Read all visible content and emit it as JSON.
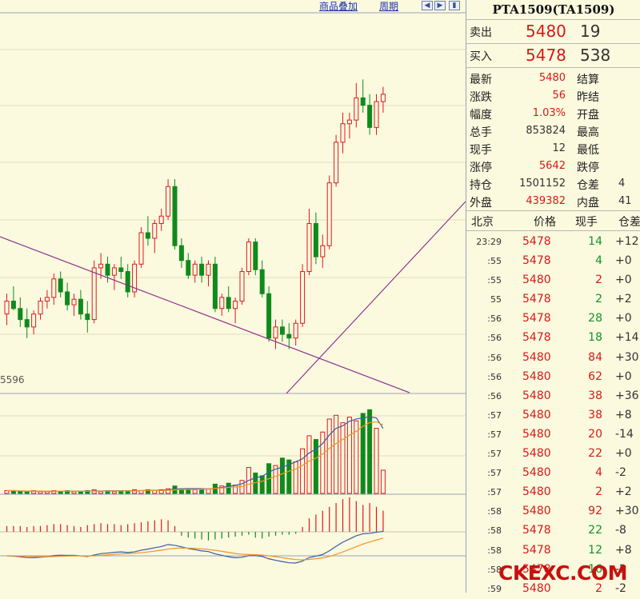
{
  "toolbar": {
    "overlay_label": "商品叠加",
    "period_label": "周期",
    "nav_icons": [
      "scroll-left-icon",
      "scroll-right-icon",
      "scroll-end-icon"
    ]
  },
  "chart_extra": {
    "price_tag": "5596"
  },
  "quote": {
    "title": "PTA1509(TA1509)",
    "ask_label": "卖出",
    "ask_price": "5480",
    "ask_vol": "19",
    "bid_label": "买入",
    "bid_price": "5478",
    "bid_vol": "538",
    "stats": [
      {
        "l1": "最新",
        "v1": "5480",
        "l2": "结算",
        "v2": "",
        "c": "red"
      },
      {
        "l1": "涨跌",
        "v1": "56",
        "l2": "昨结",
        "v2": "",
        "c": "red"
      },
      {
        "l1": "幅度",
        "v1": "1.03%",
        "l2": "开盘",
        "v2": "",
        "c": "red"
      },
      {
        "l1": "总手",
        "v1": "853824",
        "l2": "最高",
        "v2": "",
        "c": "dark"
      },
      {
        "l1": "现手",
        "v1": "12",
        "l2": "最低",
        "v2": "",
        "c": "dark"
      },
      {
        "l1": "涨停",
        "v1": "5642",
        "l2": "跌停",
        "v2": "",
        "c": "red"
      },
      {
        "l1": "持仓",
        "v1": "1501152",
        "l2": "仓差",
        "v2": "4",
        "c": "dark"
      },
      {
        "l1": "外盘",
        "v1": "439382",
        "l2": "内盘",
        "v2": "41",
        "c": "red"
      }
    ]
  },
  "trades": {
    "headers": {
      "time": "北京",
      "price": "价格",
      "vol": "现手",
      "chg": "仓差"
    },
    "rows": [
      {
        "t": "23:29",
        "p": "5478",
        "v": "14",
        "vc": "green",
        "c": "+12"
      },
      {
        "t": ":55",
        "p": "5478",
        "v": "4",
        "vc": "green",
        "c": "+0"
      },
      {
        "t": ":55",
        "p": "5480",
        "v": "2",
        "vc": "red",
        "c": "+0"
      },
      {
        "t": "55",
        "p": "5478",
        "v": "2",
        "vc": "green",
        "c": "+2"
      },
      {
        "t": ":56",
        "p": "5478",
        "v": "28",
        "vc": "green",
        "c": "+0"
      },
      {
        "t": ":56",
        "p": "5478",
        "v": "18",
        "vc": "green",
        "c": "+14"
      },
      {
        "t": ":56",
        "p": "5480",
        "v": "84",
        "vc": "red",
        "c": "+30"
      },
      {
        "t": ":56",
        "p": "5480",
        "v": "62",
        "vc": "red",
        "c": "+0"
      },
      {
        "t": ":56",
        "p": "5480",
        "v": "38",
        "vc": "red",
        "c": "+36"
      },
      {
        "t": ":57",
        "p": "5480",
        "v": "38",
        "vc": "red",
        "c": "+8"
      },
      {
        "t": ":57",
        "p": "5480",
        "v": "20",
        "vc": "red",
        "c": "-14"
      },
      {
        "t": ":57",
        "p": "5480",
        "v": "22",
        "vc": "red",
        "c": "+0"
      },
      {
        "t": ":57",
        "p": "5480",
        "v": "4",
        "vc": "red",
        "c": "-2"
      },
      {
        "t": ":57",
        "p": "5480",
        "v": "2",
        "vc": "red",
        "c": "+2"
      },
      {
        "t": ":58",
        "p": "5480",
        "v": "92",
        "vc": "red",
        "c": "+30"
      },
      {
        "t": ":58",
        "p": "5478",
        "v": "22",
        "vc": "green",
        "c": "-8"
      },
      {
        "t": ":58",
        "p": "5478",
        "v": "12",
        "vc": "green",
        "c": "+8"
      },
      {
        "t": ":58",
        "p": "5478",
        "v": "16",
        "vc": "green",
        "c": "-2"
      },
      {
        "t": ":59",
        "p": "5480",
        "v": "2",
        "vc": "red",
        "c": "-2"
      }
    ]
  },
  "watermark": "CKEXC.COM",
  "colors": {
    "bg": "#fbf9de",
    "up": "#e0191e",
    "down": "#0f8a1d",
    "trend": "#8b2a8b",
    "ma1": "#3a5aa8",
    "ma2": "#f0962a"
  },
  "chart_data": {
    "type": "candlestick",
    "visible_price_label": "5596",
    "candles": [
      [
        5603,
        5614,
        5597,
        5610
      ],
      [
        5610,
        5618,
        5605,
        5606
      ],
      [
        5606,
        5612,
        5596,
        5600
      ],
      [
        5600,
        5606,
        5590,
        5596
      ],
      [
        5596,
        5605,
        5592,
        5603
      ],
      [
        5603,
        5612,
        5600,
        5610
      ],
      [
        5610,
        5616,
        5606,
        5612
      ],
      [
        5612,
        5625,
        5608,
        5622
      ],
      [
        5622,
        5626,
        5612,
        5615
      ],
      [
        5615,
        5620,
        5605,
        5608
      ],
      [
        5608,
        5614,
        5602,
        5611
      ],
      [
        5611,
        5616,
        5600,
        5603
      ],
      [
        5603,
        5610,
        5593,
        5600
      ],
      [
        5600,
        5632,
        5598,
        5628
      ],
      [
        5628,
        5636,
        5622,
        5630
      ],
      [
        5630,
        5634,
        5620,
        5624
      ],
      [
        5624,
        5630,
        5616,
        5628
      ],
      [
        5628,
        5634,
        5622,
        5626
      ],
      [
        5626,
        5630,
        5612,
        5615
      ],
      [
        5615,
        5632,
        5612,
        5630
      ],
      [
        5630,
        5650,
        5628,
        5647
      ],
      [
        5647,
        5656,
        5640,
        5644
      ],
      [
        5644,
        5654,
        5636,
        5652
      ],
      [
        5652,
        5660,
        5648,
        5656
      ],
      [
        5656,
        5676,
        5654,
        5672
      ],
      [
        5672,
        5676,
        5638,
        5640
      ],
      [
        5640,
        5644,
        5628,
        5632
      ],
      [
        5632,
        5636,
        5622,
        5624
      ],
      [
        5624,
        5632,
        5620,
        5630
      ],
      [
        5630,
        5634,
        5620,
        5624
      ],
      [
        5624,
        5632,
        5618,
        5630
      ],
      [
        5630,
        5634,
        5604,
        5606
      ],
      [
        5606,
        5614,
        5602,
        5612
      ],
      [
        5612,
        5618,
        5604,
        5606
      ],
      [
        5606,
        5612,
        5598,
        5610
      ],
      [
        5610,
        5628,
        5608,
        5626
      ],
      [
        5626,
        5644,
        5624,
        5642
      ],
      [
        5642,
        5644,
        5624,
        5627
      ],
      [
        5627,
        5632,
        5612,
        5614
      ],
      [
        5614,
        5618,
        5588,
        5590
      ],
      [
        5590,
        5600,
        5584,
        5596
      ],
      [
        5596,
        5600,
        5588,
        5592
      ],
      [
        5592,
        5598,
        5584,
        5590
      ],
      [
        5590,
        5600,
        5586,
        5598
      ],
      [
        5598,
        5630,
        5596,
        5626
      ],
      [
        5626,
        5660,
        5624,
        5652
      ],
      [
        5652,
        5658,
        5630,
        5634
      ],
      [
        5634,
        5646,
        5628,
        5640
      ],
      [
        5640,
        5678,
        5638,
        5674
      ],
      [
        5674,
        5700,
        5672,
        5696
      ],
      [
        5696,
        5712,
        5690,
        5706
      ],
      [
        5706,
        5712,
        5698,
        5708
      ],
      [
        5708,
        5728,
        5704,
        5720
      ],
      [
        5720,
        5730,
        5712,
        5716
      ],
      [
        5716,
        5722,
        5700,
        5704
      ],
      [
        5704,
        5722,
        5700,
        5718
      ],
      [
        5718,
        5726,
        5712,
        5722
      ]
    ],
    "volumes": [
      3,
      3,
      2,
      2,
      3,
      2,
      2,
      3,
      2,
      3,
      2,
      2,
      3,
      4,
      2,
      3,
      2,
      3,
      3,
      4,
      3,
      4,
      3,
      4,
      5,
      8,
      5,
      4,
      4,
      5,
      5,
      10,
      8,
      11,
      9,
      14,
      28,
      22,
      19,
      32,
      30,
      38,
      36,
      34,
      48,
      62,
      58,
      66,
      80,
      84,
      76,
      82,
      78,
      86,
      90,
      70,
      25
    ],
    "macd_hist": [
      6,
      6,
      6,
      5,
      6,
      6,
      7,
      8,
      8,
      7,
      6,
      5,
      7,
      8,
      9,
      8,
      8,
      7,
      8,
      9,
      10,
      11,
      12,
      13,
      12,
      6,
      -4,
      -6,
      -7,
      -8,
      -9,
      -8,
      -7,
      -6,
      -5,
      -4,
      -3,
      -6,
      -7,
      -5,
      -4,
      -3,
      -3,
      -2,
      5,
      14,
      18,
      22,
      26,
      30,
      34,
      36,
      32,
      28,
      30,
      26,
      22
    ]
  }
}
